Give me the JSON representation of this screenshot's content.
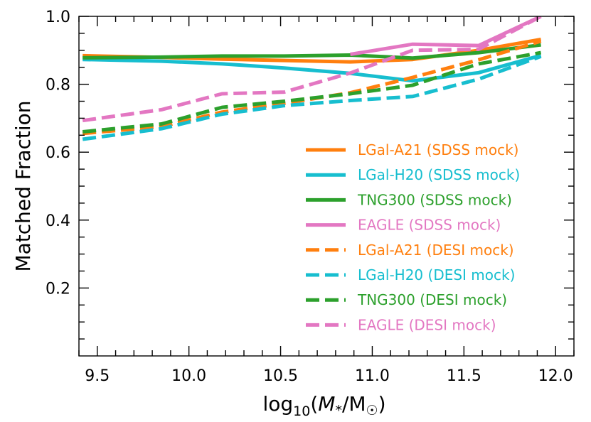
{
  "chart_data": {
    "type": "line",
    "title": "",
    "xlabel": "log10(M*/M☉)",
    "xlabel_parts": {
      "main": "log",
      "sub": "10",
      "open": "(",
      "var": "M",
      "var_sub": "*",
      "slash": "/M",
      "sun_sub": "☉",
      "close": ")"
    },
    "ylabel": "Matched Fraction",
    "xlim": [
      9.4,
      12.1
    ],
    "ylim": [
      0.0,
      1.0
    ],
    "xticks": [
      9.5,
      10.0,
      10.5,
      11.0,
      11.5,
      12.0
    ],
    "xtick_labels": [
      "9.5",
      "10.0",
      "10.5",
      "11.0",
      "11.5",
      "12.0"
    ],
    "yticks": [
      0.2,
      0.4,
      0.6,
      0.8,
      1.0
    ],
    "ytick_labels": [
      "0.2",
      "0.4",
      "0.6",
      "0.8",
      "1.0"
    ],
    "grid": false,
    "legend_position": "lower-right",
    "series": [
      {
        "name": "LGal-A21 (SDSS mock)",
        "color": "#ff7f0e",
        "style": "solid",
        "x": [
          9.42,
          9.85,
          10.18,
          10.52,
          10.88,
          11.22,
          11.58,
          11.92
        ],
        "y": [
          0.884,
          0.879,
          0.874,
          0.87,
          0.866,
          0.873,
          0.9,
          0.932
        ]
      },
      {
        "name": "LGal-H20 (SDSS mock)",
        "color": "#17becf",
        "style": "solid",
        "x": [
          9.42,
          9.85,
          10.18,
          10.52,
          10.88,
          11.22,
          11.58,
          11.92
        ],
        "y": [
          0.873,
          0.868,
          0.86,
          0.848,
          0.832,
          0.81,
          0.834,
          0.885
        ]
      },
      {
        "name": "TNG300 (SDSS mock)",
        "color": "#2ca02c",
        "style": "solid",
        "x": [
          9.42,
          9.85,
          10.18,
          10.52,
          10.88,
          11.22,
          11.58,
          11.92
        ],
        "y": [
          0.878,
          0.88,
          0.883,
          0.883,
          0.886,
          0.877,
          0.893,
          0.916
        ]
      },
      {
        "name": "EAGLE (SDSS mock)",
        "color": "#e377c2",
        "style": "solid",
        "x": [
          10.88,
          11.22,
          11.58,
          11.92
        ],
        "y": [
          0.888,
          0.918,
          0.914,
          1.0
        ]
      },
      {
        "name": "LGal-A21 (DESI mock)",
        "color": "#ff7f0e",
        "style": "dashed",
        "x": [
          9.42,
          9.85,
          10.18,
          10.52,
          10.88,
          11.22,
          11.58,
          11.92
        ],
        "y": [
          0.655,
          0.675,
          0.718,
          0.744,
          0.775,
          0.82,
          0.872,
          0.927
        ]
      },
      {
        "name": "LGal-H20 (DESI mock)",
        "color": "#17becf",
        "style": "dashed",
        "x": [
          9.42,
          9.85,
          10.18,
          10.52,
          10.88,
          11.22,
          11.58,
          11.92
        ],
        "y": [
          0.638,
          0.669,
          0.712,
          0.737,
          0.752,
          0.764,
          0.815,
          0.882
        ]
      },
      {
        "name": "TNG300 (DESI mock)",
        "color": "#2ca02c",
        "style": "dashed",
        "x": [
          9.42,
          9.85,
          10.18,
          10.52,
          10.88,
          11.22,
          11.58,
          11.92
        ],
        "y": [
          0.66,
          0.683,
          0.732,
          0.75,
          0.772,
          0.797,
          0.86,
          0.893
        ]
      },
      {
        "name": "EAGLE (DESI mock)",
        "color": "#e377c2",
        "style": "dashed",
        "x": [
          9.42,
          9.85,
          10.18,
          10.52,
          10.88,
          11.22,
          11.58,
          11.92
        ],
        "y": [
          0.693,
          0.725,
          0.772,
          0.777,
          0.833,
          0.9,
          0.903,
          1.0
        ]
      }
    ]
  }
}
